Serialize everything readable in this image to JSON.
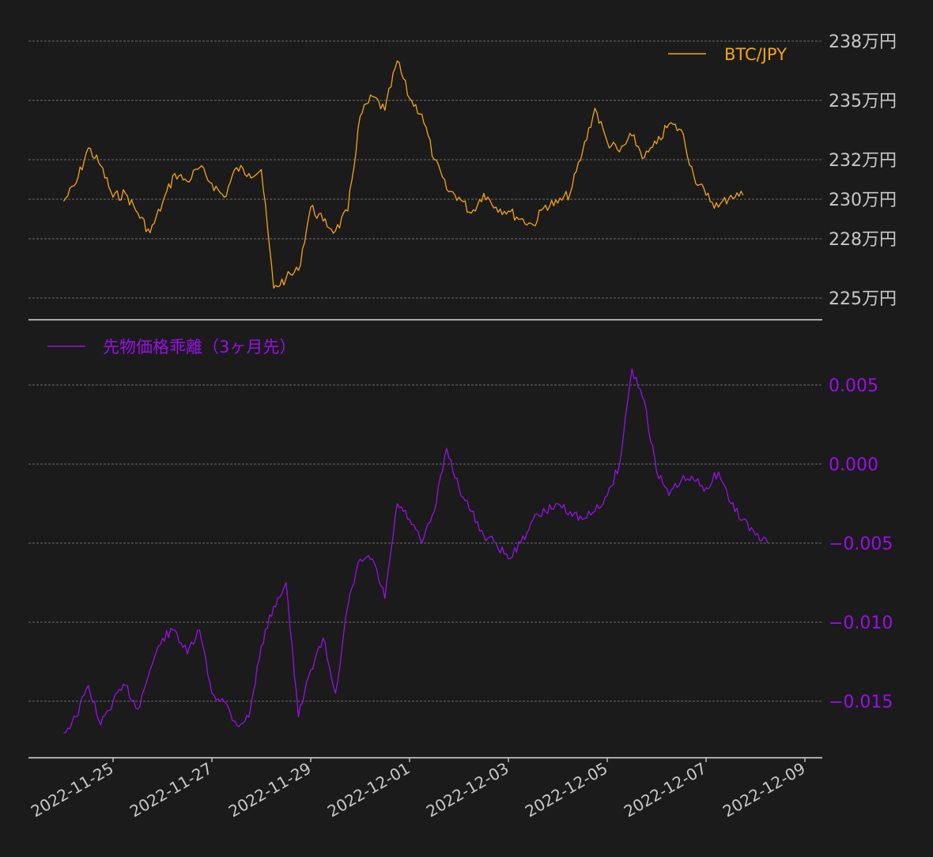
{
  "colors": {
    "background": "#1b1b1b",
    "grid": "#8a8a8a",
    "axis": "#e0e0e0",
    "tick_text": "#c8c8c8",
    "btc": "#f5a418",
    "basis": "#9a0fe8"
  },
  "chart_data": [
    {
      "type": "line",
      "y_unit_label": "万円",
      "yticks": [
        225,
        228,
        230,
        232,
        235,
        238
      ],
      "ytick_labels": [
        "225万円",
        "228万円",
        "230万円",
        "232万円",
        "235万円",
        "238万円"
      ],
      "ylim": [
        224.5,
        238.2
      ],
      "grid": true,
      "legend_position": "top-right",
      "series": [
        {
          "name": "BTC/JPY",
          "x": [
            "2022-11-24T00:00",
            "2022-11-24T06:00",
            "2022-11-24T12:00",
            "2022-11-24T18:00",
            "2022-11-25T00:00",
            "2022-11-25T06:00",
            "2022-11-25T12:00",
            "2022-11-25T18:00",
            "2022-11-26T00:00",
            "2022-11-26T06:00",
            "2022-11-26T12:00",
            "2022-11-26T18:00",
            "2022-11-27T00:00",
            "2022-11-27T06:00",
            "2022-11-27T12:00",
            "2022-11-27T18:00",
            "2022-11-28T00:00",
            "2022-11-28T06:00",
            "2022-11-28T12:00",
            "2022-11-28T18:00",
            "2022-11-29T00:00",
            "2022-11-29T06:00",
            "2022-11-29T12:00",
            "2022-11-29T18:00",
            "2022-11-30T00:00",
            "2022-11-30T06:00",
            "2022-11-30T12:00",
            "2022-11-30T18:00",
            "2022-12-01T00:00",
            "2022-12-01T06:00",
            "2022-12-01T12:00",
            "2022-12-01T18:00",
            "2022-12-02T00:00",
            "2022-12-02T06:00",
            "2022-12-02T12:00",
            "2022-12-02T18:00",
            "2022-12-03T00:00",
            "2022-12-03T06:00",
            "2022-12-03T12:00",
            "2022-12-03T18:00",
            "2022-12-04T00:00",
            "2022-12-04T06:00",
            "2022-12-04T12:00",
            "2022-12-04T18:00",
            "2022-12-05T00:00",
            "2022-12-05T06:00",
            "2022-12-05T12:00",
            "2022-12-05T18:00",
            "2022-12-06T00:00",
            "2022-12-06T06:00",
            "2022-12-06T12:00",
            "2022-12-06T18:00",
            "2022-12-07T00:00",
            "2022-12-07T06:00",
            "2022-12-07T12:00",
            "2022-12-07T18:00"
          ],
          "y": [
            229.9,
            230.8,
            232.6,
            231.7,
            230.1,
            230.3,
            229.3,
            228.3,
            229.8,
            231.3,
            230.9,
            231.6,
            230.8,
            230.1,
            231.6,
            231.3,
            231.5,
            225.5,
            226.0,
            226.4,
            229.6,
            228.9,
            228.4,
            229.4,
            234.2,
            235.2,
            234.5,
            237.0,
            235.1,
            234.3,
            232.0,
            230.5,
            230.1,
            229.3,
            230.3,
            229.6,
            229.4,
            229.0,
            228.7,
            229.7,
            229.8,
            230.3,
            232.4,
            234.6,
            232.9,
            232.4,
            233.2,
            232.1,
            232.8,
            233.8,
            233.5,
            231.2,
            230.2,
            229.6,
            230.2,
            230.2
          ]
        }
      ]
    },
    {
      "type": "line",
      "yticks": [
        -0.015,
        -0.01,
        -0.005,
        0.0,
        0.005
      ],
      "ytick_labels": [
        "−0.015",
        "−0.010",
        "−0.005",
        "0.000",
        "0.005"
      ],
      "ylim": [
        -0.0185,
        0.008
      ],
      "grid": true,
      "legend_position": "top-left",
      "x_range": [
        "2022-11-23T20:00",
        "2022-12-09T00:00"
      ],
      "xticks": [
        "2022-11-25",
        "2022-11-27",
        "2022-11-29",
        "2022-12-01",
        "2022-12-03",
        "2022-12-05",
        "2022-12-07",
        "2022-12-09"
      ],
      "series": [
        {
          "name": "先物価格乖離（3ヶ月先）",
          "x": [
            "2022-11-24T00:00",
            "2022-11-24T06:00",
            "2022-11-24T12:00",
            "2022-11-24T18:00",
            "2022-11-25T00:00",
            "2022-11-25T06:00",
            "2022-11-25T12:00",
            "2022-11-25T18:00",
            "2022-11-26T00:00",
            "2022-11-26T06:00",
            "2022-11-26T12:00",
            "2022-11-26T18:00",
            "2022-11-27T00:00",
            "2022-11-27T06:00",
            "2022-11-27T12:00",
            "2022-11-27T18:00",
            "2022-11-28T00:00",
            "2022-11-28T06:00",
            "2022-11-28T12:00",
            "2022-11-28T18:00",
            "2022-11-29T00:00",
            "2022-11-29T06:00",
            "2022-11-29T12:00",
            "2022-11-29T18:00",
            "2022-11-30T00:00",
            "2022-11-30T06:00",
            "2022-11-30T12:00",
            "2022-11-30T18:00",
            "2022-12-01T00:00",
            "2022-12-01T06:00",
            "2022-12-01T12:00",
            "2022-12-01T18:00",
            "2022-12-02T00:00",
            "2022-12-02T06:00",
            "2022-12-02T12:00",
            "2022-12-02T18:00",
            "2022-12-03T00:00",
            "2022-12-03T06:00",
            "2022-12-03T12:00",
            "2022-12-03T18:00",
            "2022-12-04T00:00",
            "2022-12-04T06:00",
            "2022-12-04T12:00",
            "2022-12-04T18:00",
            "2022-12-05T00:00",
            "2022-12-05T06:00",
            "2022-12-05T12:00",
            "2022-12-05T18:00",
            "2022-12-06T00:00",
            "2022-12-06T06:00",
            "2022-12-06T12:00",
            "2022-12-06T18:00",
            "2022-12-07T00:00",
            "2022-12-07T06:00",
            "2022-12-07T12:00",
            "2022-12-07T18:00",
            "2022-12-08T00:00",
            "2022-12-08T06:00"
          ],
          "y": [
            -0.017,
            -0.016,
            -0.014,
            -0.0165,
            -0.015,
            -0.014,
            -0.0155,
            -0.013,
            -0.011,
            -0.0105,
            -0.012,
            -0.0105,
            -0.0145,
            -0.015,
            -0.0165,
            -0.016,
            -0.0115,
            -0.009,
            -0.0075,
            -0.016,
            -0.013,
            -0.011,
            -0.0145,
            -0.009,
            -0.006,
            -0.006,
            -0.0085,
            -0.0025,
            -0.0035,
            -0.005,
            -0.003,
            0.001,
            -0.0015,
            -0.003,
            -0.0045,
            -0.005,
            -0.006,
            -0.005,
            -0.0035,
            -0.003,
            -0.0025,
            -0.003,
            -0.0035,
            -0.003,
            -0.002,
            0.0,
            0.006,
            0.004,
            -0.0005,
            -0.002,
            -0.001,
            -0.001,
            -0.0015,
            -0.0005,
            -0.0025,
            -0.0035,
            -0.0045,
            -0.005
          ]
        }
      ]
    }
  ]
}
